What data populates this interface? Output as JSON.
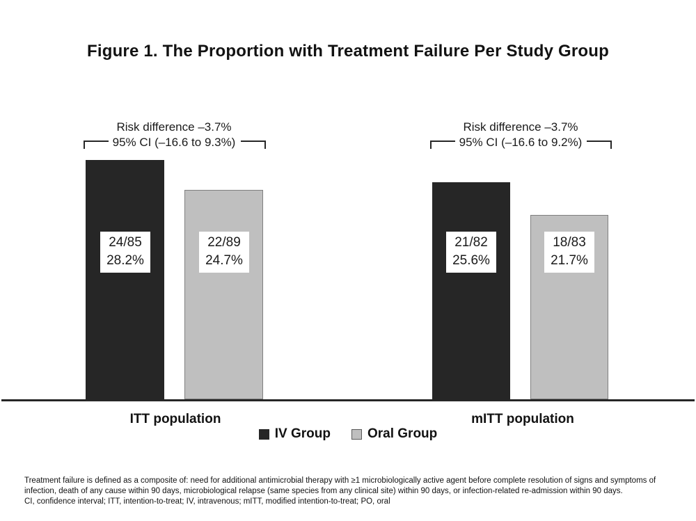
{
  "title": "Figure 1. The Proportion with Treatment Failure Per Study Group",
  "chart_data": {
    "type": "bar",
    "categories": [
      "ITT population",
      "mITT population"
    ],
    "series": [
      {
        "name": "IV Group",
        "color": "#262626",
        "values": [
          28.2,
          25.6
        ]
      },
      {
        "name": "Oral Group",
        "color": "#bfbfbf",
        "values": [
          24.7,
          21.7
        ]
      }
    ],
    "ylabel": "",
    "xlabel": "",
    "ylim": [
      0,
      30
    ],
    "grid": false,
    "legend_position": "bottom",
    "groups": [
      {
        "category": "ITT population",
        "annotation_line1": "Risk difference –3.7%",
        "annotation_line2": "95% CI (–16.6 to 9.3%)",
        "bars": [
          {
            "series": "IV Group",
            "fraction": "24/85",
            "percent_label": "28.2%",
            "value": 28.2
          },
          {
            "series": "Oral Group",
            "fraction": "22/89",
            "percent_label": "24.7%",
            "value": 24.7
          }
        ]
      },
      {
        "category": "mITT population",
        "annotation_line1": "Risk difference –3.7%",
        "annotation_line2": "95% CI (–16.6 to 9.2%)",
        "bars": [
          {
            "series": "IV Group",
            "fraction": "21/82",
            "percent_label": "25.6%",
            "value": 25.6
          },
          {
            "series": "Oral Group",
            "fraction": "18/83",
            "percent_label": "21.7%",
            "value": 21.7
          }
        ]
      }
    ]
  },
  "legend": {
    "items": [
      {
        "label": "IV Group",
        "color": "#262626"
      },
      {
        "label": "Oral Group",
        "color": "#bfbfbf",
        "border_color": "#595959"
      }
    ]
  },
  "footnote": {
    "definition": "Treatment failure is defined as a composite of: need for additional antimicrobial therapy with ≥1 microbiologically active agent before complete resolution of signs and symptoms of infection, death of any cause within 90 days, microbiological relapse (same species from any clinical site) within 90 days, or infection-related re-admission within 90 days.",
    "abbreviations": "CI, confidence interval; ITT, intention-to-treat; IV, intravenous; mITT, modified intention-to-treat; PO, oral"
  },
  "colors": {
    "iv_bar": "#262626",
    "oral_bar_fill": "#bfbfbf",
    "oral_bar_border": "#7f7f7f",
    "axis": "#262626",
    "background": "#ffffff",
    "text": "#1a1a1a"
  }
}
